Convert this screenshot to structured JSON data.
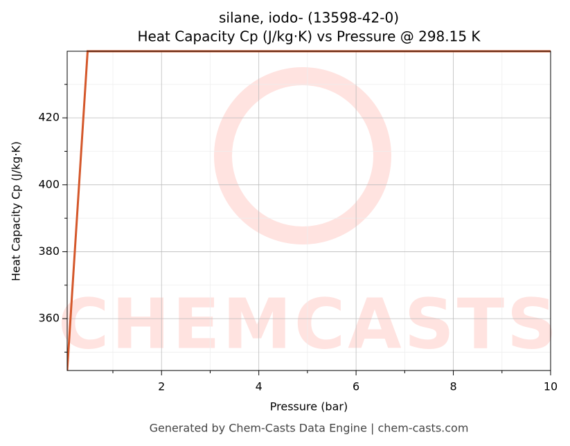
{
  "chart_data": {
    "type": "line",
    "title": "silane, iodo- (13598-42-0)",
    "subtitle": "Heat Capacity Cp (J/kg·K) vs Pressure @ 298.15 K",
    "x_label": "Pressure (bar)",
    "y_label": "Heat Capacity Cp (J/kg·K)",
    "footer": "Generated by Chem-Casts Data Engine | chem-casts.com",
    "watermark": "CHEMCASTS",
    "x": [
      0.06,
      0.48,
      10
    ],
    "series": [
      {
        "name": "Cp",
        "color": "#d4572a",
        "values": [
          344.5,
          439.9,
          439.9
        ]
      }
    ],
    "xlim": [
      0.06,
      10
    ],
    "ylim": [
      344.5,
      439.9
    ],
    "xticks": [
      2,
      4,
      6,
      8,
      10
    ],
    "yticks": [
      360,
      380,
      400,
      420
    ],
    "xminorticks": [
      1,
      3,
      5,
      7,
      9
    ],
    "yminorticks": [
      350,
      370,
      390,
      410,
      430
    ],
    "grid": true
  }
}
